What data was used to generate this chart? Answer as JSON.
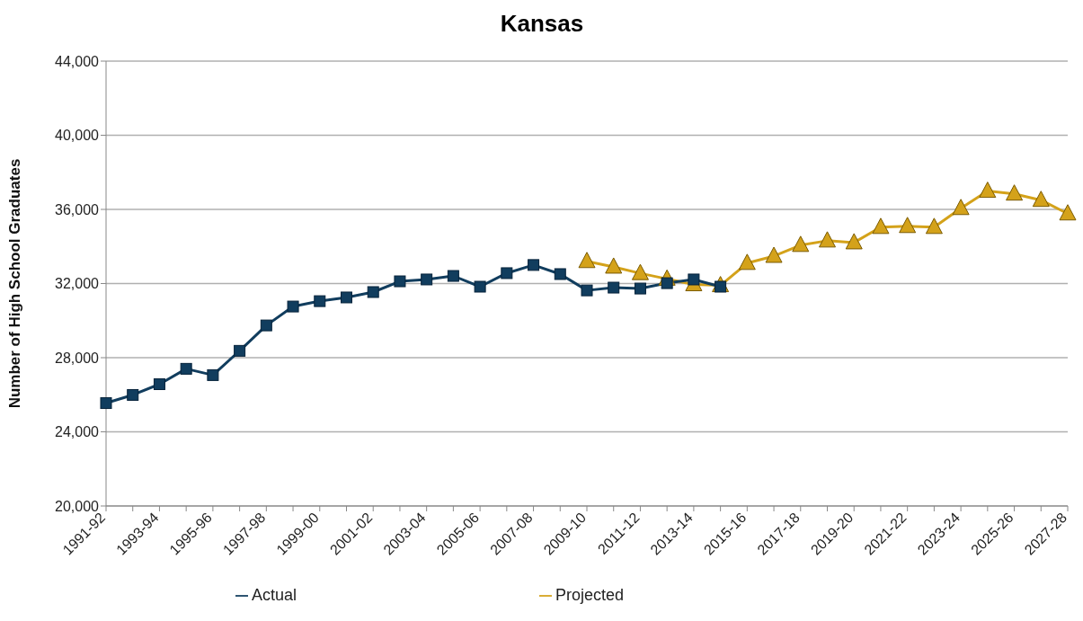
{
  "chart_data": {
    "type": "line",
    "title": "Kansas",
    "ylabel": "Number of High School Graduates",
    "categories": [
      "1991-92",
      null,
      "1993-94",
      null,
      "1995-96",
      null,
      "1997-98",
      null,
      "1999-00",
      null,
      "2001-02",
      null,
      "2003-04",
      null,
      "2005-06",
      null,
      "2007-08",
      null,
      "2009-10",
      null,
      "2011-12",
      null,
      "2013-14",
      null,
      "2015-16",
      null,
      "2017-18",
      null,
      "2019-20",
      null,
      "2021-22",
      null,
      "2023-24",
      null,
      "2025-26",
      null,
      "2027-28"
    ],
    "series": [
      {
        "name": "Projected",
        "color": "#d4a21a",
        "marker": "triangle",
        "values": [
          null,
          null,
          null,
          null,
          null,
          null,
          null,
          null,
          null,
          null,
          null,
          null,
          null,
          null,
          null,
          null,
          null,
          null,
          33200,
          32900,
          32550,
          32250,
          31950,
          31900,
          33100,
          33480,
          34070,
          34310,
          34210,
          35040,
          35090,
          35040,
          36060,
          36990,
          36840,
          36500,
          35770
        ]
      },
      {
        "name": "Actual",
        "color": "#113d5e",
        "marker": "square",
        "values": [
          25550,
          25990,
          26570,
          27400,
          27060,
          28370,
          29740,
          30760,
          31050,
          31250,
          31540,
          32120,
          32220,
          32410,
          31830,
          32560,
          33000,
          32510,
          31630,
          31780,
          31730,
          32020,
          32220,
          31830,
          null,
          null,
          null,
          null,
          null,
          null,
          null,
          null,
          null,
          null,
          null,
          null,
          null
        ]
      }
    ],
    "ylim": [
      20000,
      44000
    ],
    "yticks": [
      {
        "value": 20000,
        "label": "20,000"
      },
      {
        "value": 24000,
        "label": "24,000"
      },
      {
        "value": 28000,
        "label": "28,000"
      },
      {
        "value": 32000,
        "label": "32,000"
      },
      {
        "value": 36000,
        "label": "36,000"
      },
      {
        "value": 40000,
        "label": "40,000"
      },
      {
        "value": 44000,
        "label": "44,000"
      }
    ],
    "grid": "y",
    "legend": "bottom",
    "line_style": "solid"
  }
}
